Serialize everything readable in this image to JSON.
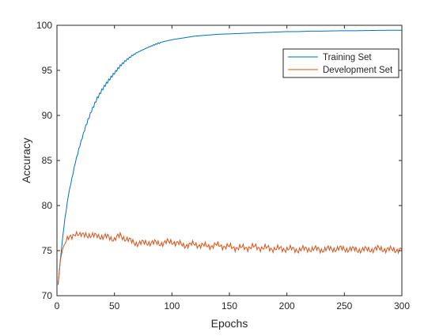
{
  "chart_data": {
    "type": "line",
    "title": "",
    "xlabel": "Epochs",
    "ylabel": "Accuracy",
    "xlim": [
      0,
      300
    ],
    "ylim": [
      70,
      100
    ],
    "xticks": [
      0,
      50,
      100,
      150,
      200,
      250,
      300
    ],
    "yticks": [
      70,
      75,
      80,
      85,
      90,
      95,
      100
    ],
    "grid": false,
    "legend_position": "top-right",
    "series": [
      {
        "name": "Training Set",
        "color": "#0072bd",
        "x": [
          1,
          3,
          5,
          7,
          10,
          13,
          16,
          20,
          25,
          30,
          35,
          40,
          45,
          50,
          55,
          60,
          65,
          70,
          80,
          90,
          100,
          110,
          120,
          130,
          140,
          150,
          160,
          170,
          180,
          190,
          200,
          210,
          220,
          230,
          240,
          250,
          260,
          270,
          280,
          290,
          300
        ],
        "y": [
          71.2,
          74.0,
          76.5,
          78.6,
          81.2,
          83.0,
          84.8,
          86.7,
          88.8,
          90.5,
          91.9,
          93.0,
          93.9,
          94.7,
          95.5,
          96.1,
          96.6,
          97.0,
          97.6,
          98.1,
          98.4,
          98.6,
          98.8,
          98.9,
          99.0,
          99.05,
          99.1,
          99.15,
          99.2,
          99.25,
          99.3,
          99.3,
          99.35,
          99.35,
          99.38,
          99.4,
          99.4,
          99.42,
          99.44,
          99.45,
          99.45
        ]
      },
      {
        "name": "Development Set",
        "color": "#d95319",
        "x": [
          1,
          3,
          5,
          7,
          10,
          13,
          16,
          20,
          25,
          30,
          35,
          40,
          45,
          50,
          55,
          60,
          65,
          70,
          80,
          90,
          100,
          110,
          120,
          130,
          140,
          150,
          160,
          170,
          180,
          190,
          200,
          210,
          220,
          230,
          240,
          250,
          260,
          270,
          280,
          290,
          300
        ],
        "y": [
          71.3,
          74.0,
          75.2,
          75.9,
          76.3,
          76.6,
          77.0,
          76.6,
          76.9,
          76.5,
          76.8,
          76.4,
          76.6,
          76.2,
          76.7,
          76.3,
          76.0,
          75.8,
          75.9,
          75.8,
          76.0,
          75.6,
          75.7,
          75.5,
          75.6,
          75.4,
          75.3,
          75.4,
          75.3,
          75.2,
          75.2,
          75.1,
          75.2,
          75.1,
          75.2,
          75.2,
          75.1,
          75.1,
          75.2,
          75.1,
          75.1
        ]
      }
    ]
  }
}
